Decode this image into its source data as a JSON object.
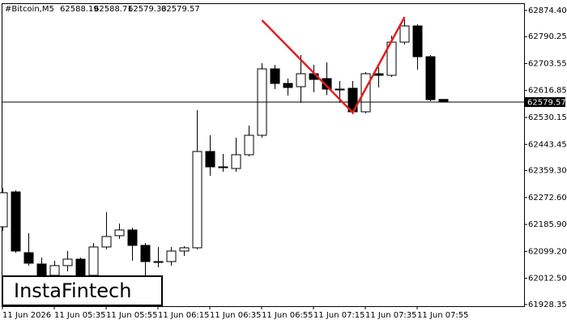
{
  "chart_data": {
    "type": "candlestick",
    "title": "#Bitcoin,M5",
    "logo": "InstaFintech",
    "categories": [
      "11 Jun 2026",
      null,
      null,
      null,
      "11 Jun 05:35",
      null,
      null,
      null,
      "11 Jun 05:55",
      null,
      null,
      null,
      "11 Jun 06:15",
      null,
      null,
      null,
      "11 Jun 06:35",
      null,
      null,
      null,
      "11 Jun 06:55",
      null,
      null,
      null,
      "11 Jun 07:15",
      null,
      null,
      null,
      "11 Jun 07:35",
      null,
      null,
      null,
      "11 Jun 07:55",
      null,
      null
    ],
    "open": [
      62178.4,
      62290.6,
      62095.1,
      62058.7,
      62022.2,
      62053.5,
      62074.3,
      62022.2,
      62113.4,
      62149.8,
      62168.1,
      62118.6,
      62066.5,
      62066.5,
      62100.4,
      62110.8,
      62420.7,
      62371.2,
      62366.0,
      62410.3,
      62472.8,
      62686.5,
      62639.6,
      62629.2,
      62670.9,
      62655.2,
      62621.4,
      62624.0,
      62548.4,
      62670.9,
      62665.7,
      62772.5,
      62824.6,
      62725.6,
      62588.19
    ],
    "high": [
      62303.5,
      62295.8,
      62157.7,
      62079.5,
      62069.1,
      62100.4,
      62079.5,
      62126.4,
      62225.3,
      62188.8,
      62175.9,
      62126.4,
      62113.4,
      62113.4,
      62116.0,
      62553.6,
      62472.8,
      62412.9,
      62465.0,
      62504.1,
      62704.8,
      62699.6,
      62655.2,
      62730.8,
      62699.6,
      62707.4,
      62647.4,
      62647.4,
      62676.1,
      62691.7,
      62793.4,
      62845.5,
      62829.9,
      62730.8,
      62588.71
    ],
    "low": [
      62165.5,
      62095.1,
      62053.5,
      61996.1,
      62009.2,
      62035.2,
      61996.1,
      62017.0,
      62105.6,
      62139.4,
      62069.1,
      62022.2,
      62048.2,
      62053.5,
      62084.7,
      62105.6,
      62342.5,
      62355.6,
      62355.6,
      62405.1,
      62465.0,
      62621.4,
      62600.5,
      62577.0,
      62611.0,
      62602.1,
      62577.0,
      62540.6,
      62543.2,
      62626.6,
      62660.5,
      62764.7,
      62683.9,
      62582.3,
      62579.33
    ],
    "close": [
      62288.0,
      62100.4,
      62061.3,
      62009.2,
      62053.5,
      62074.3,
      62009.2,
      62113.4,
      62147.2,
      62168.1,
      62118.6,
      62066.5,
      62063.9,
      62100.4,
      62110.8,
      62420.7,
      62371.2,
      62368.6,
      62410.3,
      62472.8,
      62686.5,
      62639.6,
      62626.6,
      62670.9,
      62652.6,
      62621.4,
      62621.4,
      62548.4,
      62670.9,
      62665.7,
      62772.5,
      62824.6,
      62725.6,
      62587.5,
      62579.57
    ],
    "up_color": "#ffffff",
    "down_color": "#000000",
    "pattern": {
      "color": "#e02020",
      "x": [
        20,
        27,
        31
      ],
      "values": [
        62842.9,
        62545.8,
        62853.3
      ]
    },
    "ylim": [
      61923,
      62895
    ],
    "yticks": [
      {
        "value": 62874.4,
        "label": "62874.40"
      },
      62790.25,
      62703.55,
      62616.85,
      62530.15,
      62443.45,
      {
        "value": 62359.3,
        "label": "62359.30"
      },
      {
        "value": 62272.6,
        "label": "62272.60"
      },
      {
        "value": 62185.9,
        "label": "62185.90"
      },
      {
        "value": 62099.2,
        "label": "62099.20"
      },
      {
        "value": 62012.5,
        "label": "62012.50"
      },
      61928.35
    ]
  }
}
